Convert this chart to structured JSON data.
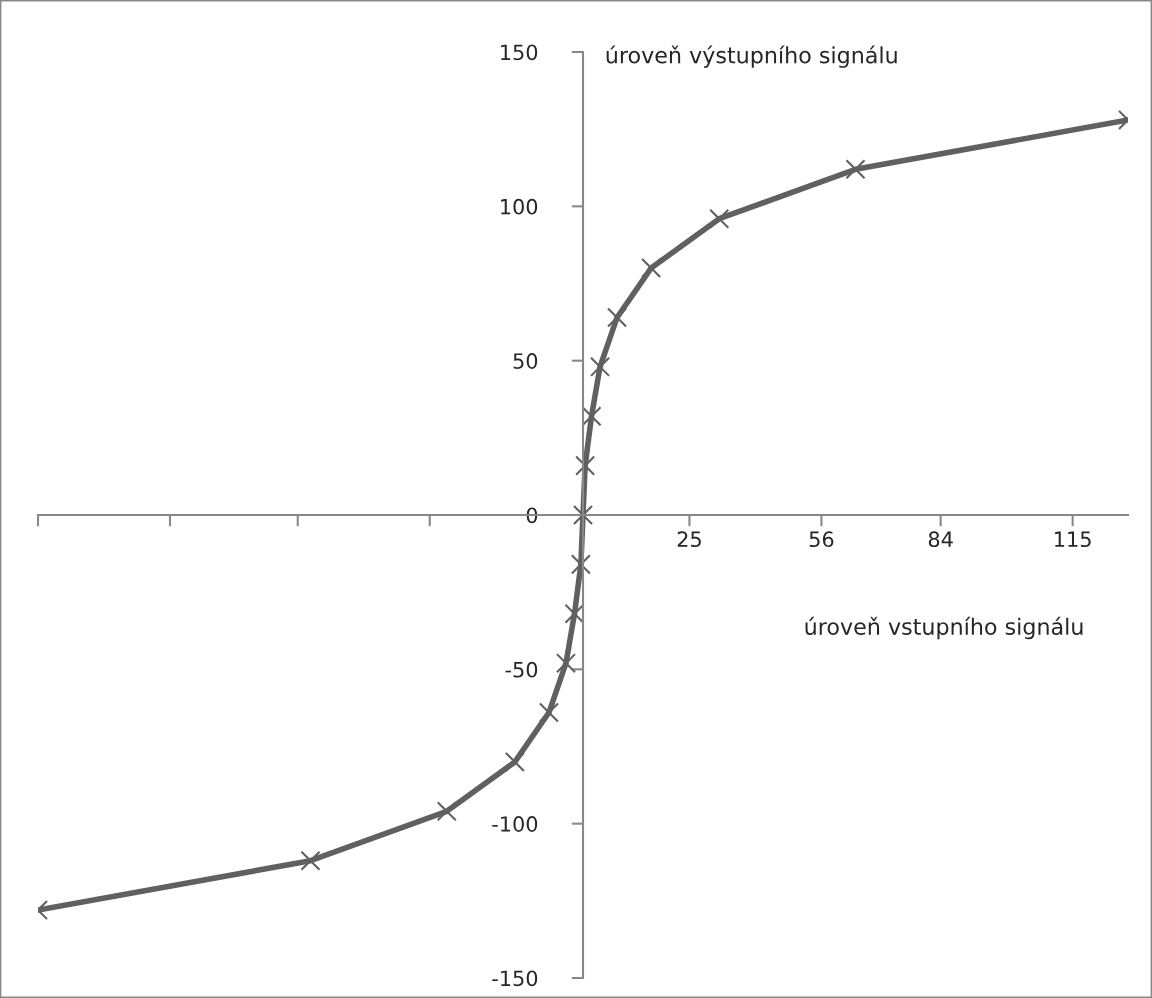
{
  "chart_data": {
    "type": "line",
    "xlabel": "úroveň vstupního signálu",
    "ylabel": "úroveň výstupního signálu",
    "x": [
      -128,
      -64,
      -32,
      -16,
      -8,
      -4,
      -2,
      -0.5,
      0,
      0.5,
      2,
      4,
      8,
      16,
      32,
      64,
      128
    ],
    "series": [
      {
        "color": "#606060",
        "values": [
          -128,
          -112,
          -96,
          -80,
          -64,
          -48,
          -32,
          -16,
          0,
          16,
          32,
          48,
          64,
          80,
          96,
          112,
          128
        ]
      }
    ],
    "xlim": [
      -128,
      128
    ],
    "xticks": [
      {
        "value": -128,
        "label": null
      },
      {
        "value": -97,
        "label": null
      },
      {
        "value": -67,
        "label": null
      },
      {
        "value": -36,
        "label": null
      },
      25,
      56,
      84,
      115
    ],
    "ylim": [
      -150,
      150
    ],
    "yticks": [
      -150,
      -100,
      -50,
      0,
      50,
      100,
      150
    ],
    "marker": "cross",
    "line_style": "solid",
    "grid": false,
    "legend": false
  }
}
